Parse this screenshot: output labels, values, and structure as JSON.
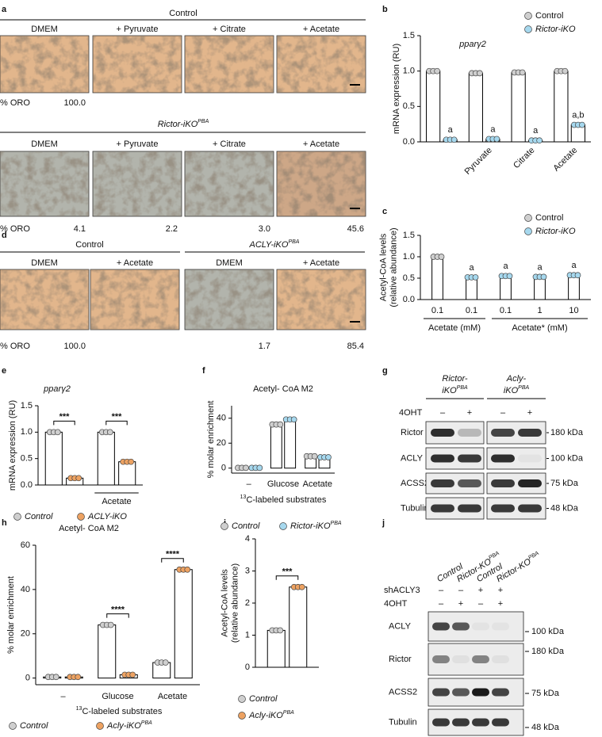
{
  "figure": {
    "panel_labels": [
      "a",
      "b",
      "c",
      "d",
      "e",
      "f",
      "g",
      "h",
      "i",
      "j"
    ],
    "a": {
      "groups": [
        {
          "title": "Control",
          "conditions": [
            "DMEM",
            "+ Pyruvate",
            "+ Citrate",
            "+ Acetate"
          ],
          "oro_label": "% ORO",
          "oro": [
            "100.0",
            null,
            null,
            null
          ]
        },
        {
          "title": "Rictor-iKO",
          "title_sup": "PBA",
          "conditions": [
            "DMEM",
            "+ Pyruvate",
            "+ Citrate",
            "+ Acetate"
          ],
          "oro_label": "% ORO",
          "oro": [
            "4.1",
            "2.2",
            "3.0",
            "45.6"
          ]
        }
      ]
    },
    "d": {
      "groups": [
        {
          "title": "Control",
          "conditions": [
            "DMEM",
            "+ Acetate"
          ]
        },
        {
          "title": "ACLY-iKO",
          "title_sup": "PBA",
          "conditions": [
            "DMEM",
            "+ Acetate"
          ]
        }
      ],
      "oro_label": "% ORO",
      "oro": [
        "100.0",
        null,
        "1.7",
        "85.4"
      ]
    },
    "g": {
      "lane_groups": [
        {
          "title": "Rictor-",
          "title2": "iKO",
          "title_sup": "PBA"
        },
        {
          "title": "Acly-",
          "title2": "iKO",
          "title_sup": "PBA"
        }
      ],
      "treatment": "4OHT",
      "lanes": [
        "–",
        "+",
        "–",
        "+"
      ],
      "rows": [
        "Rictor",
        "ACLY",
        "ACSS2",
        "Tubulin"
      ],
      "markers": [
        "180 kDa",
        "100 kDa",
        "75 kDa",
        "48 kDa"
      ]
    },
    "j": {
      "lanes": [
        {
          "name": "Control"
        },
        {
          "name": "Rictor-KO",
          "sup": "PBA"
        },
        {
          "name": "Control"
        },
        {
          "name": "Rictor-KO",
          "sup": "PBA"
        }
      ],
      "treatments": [
        {
          "label": "shACLY3",
          "values": [
            "–",
            "–",
            "+",
            "+"
          ]
        },
        {
          "label": "4OHT",
          "values": [
            "–",
            "+",
            "–",
            "+"
          ]
        }
      ],
      "rows": [
        "ACLY",
        "Rictor",
        "ACSS2",
        "Tubulin"
      ],
      "markers": [
        "100 kDa",
        "180 kDa",
        "75 kDa",
        "48 kDa"
      ]
    }
  },
  "chart_data": [
    {
      "type": "bar",
      "title": "pparγ2",
      "ylabel": "mRNA expression (RU)",
      "categories": [
        null,
        "Pyruvate",
        "Citrate",
        "Acetate"
      ],
      "series": [
        {
          "name": "Control",
          "color": "#cfcfcf",
          "values": [
            1.0,
            0.97,
            0.98,
            1.0
          ]
        },
        {
          "name": "Rictor-iKO",
          "color": "#a6d8ee",
          "values": [
            0.03,
            0.04,
            0.02,
            0.24
          ],
          "annotations": [
            "a",
            "a",
            "a",
            "a,b"
          ]
        }
      ],
      "ylim": [
        0,
        1.5
      ],
      "yticks": [
        {
          "value": 0,
          "label": "0.0"
        },
        {
          "value": 0.5,
          "label": "0.5"
        },
        {
          "value": 1,
          "label": "1.0"
        },
        {
          "value": 1.5,
          "label": "1.5"
        }
      ]
    },
    {
      "type": "bar",
      "ylabel": [
        "Acetyl-CoA levels",
        "(relative abundance)"
      ],
      "categories": [
        "0.1",
        "0.1",
        "0.1",
        "1",
        "10"
      ],
      "category_groups": [
        "Acetate (mM)",
        "Acetate* (mM)"
      ],
      "series": [
        {
          "name": "Control",
          "color": "#cfcfcf",
          "values": [
            1.0,
            null,
            null,
            null,
            null
          ]
        },
        {
          "name": "Rictor-iKO",
          "color": "#a6d8ee",
          "values": [
            null,
            0.52,
            0.55,
            0.53,
            0.57
          ],
          "annotations": [
            null,
            "a",
            "a",
            "a",
            "a"
          ]
        }
      ],
      "ylim": [
        0,
        1.5
      ],
      "yticks": [
        {
          "value": 0,
          "label": "0.0"
        },
        {
          "value": 0.5,
          "label": "0.5"
        },
        {
          "value": 1,
          "label": "1.0"
        },
        {
          "value": 1.5,
          "label": "1.5"
        }
      ]
    },
    {
      "type": "bar",
      "title": "pparγ2",
      "ylabel": "mRNA expression (RU)",
      "categories": [
        null,
        "Acetate"
      ],
      "series": [
        {
          "name": "Control",
          "color": "#cfcfcf",
          "values": [
            1.0,
            1.0
          ]
        },
        {
          "name": "ACLY-iKO",
          "color": "#eda262",
          "values": [
            0.13,
            0.44
          ]
        }
      ],
      "significance": [
        "***",
        "***"
      ],
      "ylim": [
        0,
        1.5
      ],
      "yticks": [
        {
          "value": 0,
          "label": "0.0"
        },
        {
          "value": 0.5,
          "label": "0.5"
        },
        {
          "value": 1,
          "label": "1.0"
        },
        {
          "value": 1.5,
          "label": "1.5"
        }
      ]
    },
    {
      "type": "bar",
      "title": "Acetyl- CoA M2",
      "ylabel": "% molar enrichment",
      "xlabel_sup": "13",
      "xlabel": "C-labeled substrates",
      "categories": [
        "–",
        "Glucose",
        "Acetate"
      ],
      "series": [
        {
          "name": "Control",
          "color": "#cfcfcf",
          "values": [
            0.2,
            35,
            9.5
          ]
        },
        {
          "name": "Rictor-iKO",
          "name_sup": "PBA",
          "color": "#a6d8ee",
          "values": [
            0.2,
            39,
            8.7
          ]
        }
      ],
      "ylim": [
        -4,
        50
      ],
      "yticks": [
        0,
        20,
        40
      ]
    },
    {
      "type": "bar",
      "title": "Acetyl- CoA M2",
      "ylabel": "% molar enrichment",
      "xlabel_sup": "13",
      "xlabel": "C-labeled substrates",
      "categories": [
        "–",
        "Glucose",
        "Acetate"
      ],
      "series": [
        {
          "name": "Control",
          "color": "#cfcfcf",
          "values": [
            0.5,
            24,
            7
          ]
        },
        {
          "name": "Acly-iKO",
          "name_sup": "PBA",
          "color": "#eda262",
          "values": [
            0.5,
            1.5,
            49
          ]
        }
      ],
      "significance": [
        null,
        "****",
        "****"
      ],
      "ylim": [
        -3,
        60
      ],
      "yticks": [
        0,
        20,
        40,
        60
      ]
    },
    {
      "type": "bar",
      "ylabel": [
        "Acetyl-CoA levels",
        "(relative abundance)"
      ],
      "categories": [
        null
      ],
      "series": [
        {
          "name": "Control",
          "color": "#cfcfcf",
          "values": [
            1.15
          ]
        },
        {
          "name": "Acly-iKO",
          "name_sup": "PBA",
          "color": "#eda262",
          "values": [
            2.5
          ]
        }
      ],
      "significance": [
        "***"
      ],
      "ylim": [
        0,
        4
      ],
      "yticks": [
        0,
        1,
        2,
        3,
        4
      ]
    }
  ]
}
